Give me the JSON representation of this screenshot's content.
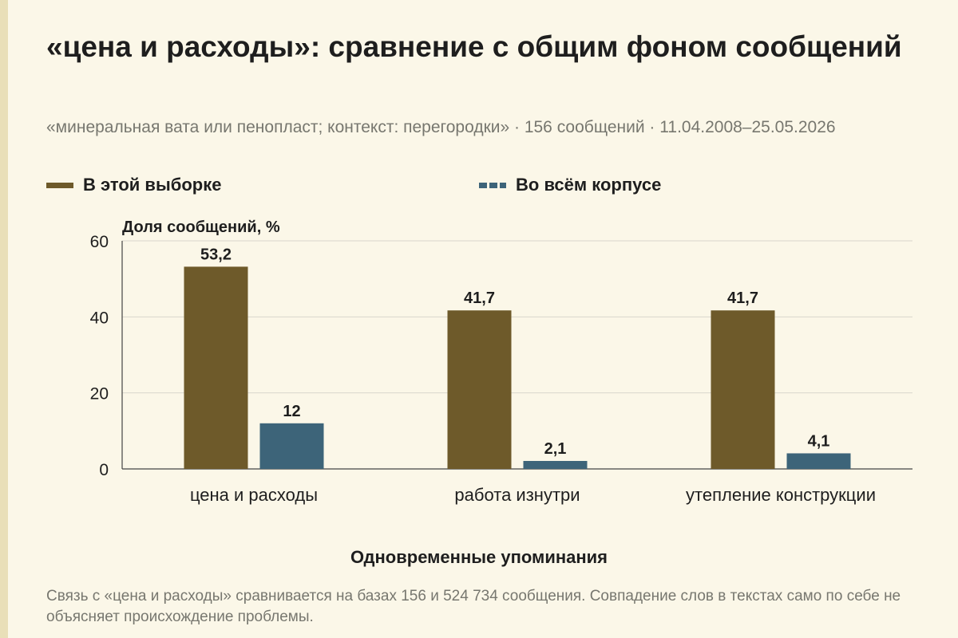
{
  "title": "«цена и расходы»: сравнение с общим фоном сообщений",
  "subtitle": "«минеральная вата или пенопласт; контекст: перегородки» · 156 сообщений · 11.04.2008–25.05.2026",
  "footnote": "Связь с «цена и расходы» сравнивается на базах 156 и 524 734 сообщения. Совпадение слов в текстах само по себе не объясняет происхождение проблемы.",
  "colors": {
    "sample": "#6e5a2a",
    "corpus": "#3d6479",
    "grid": "#d9d6cc",
    "axis": "#444444"
  },
  "chart_data": {
    "type": "bar",
    "categories": [
      "цена и расходы",
      "работа изнутри",
      "утепление конструкции"
    ],
    "series": [
      {
        "name": "В этой выборке",
        "values": [
          53.2,
          41.7,
          41.7
        ],
        "labels": [
          "53,2",
          "41,7",
          "41,7"
        ]
      },
      {
        "name": "Во всём корпусе",
        "values": [
          12,
          2.1,
          4.1
        ],
        "labels": [
          "12",
          "2,1",
          "4,1"
        ]
      }
    ],
    "ylabel": "Доля сообщений, %",
    "xlabel": "Одновременные упоминания",
    "ylim": [
      0,
      60
    ],
    "yticks": [
      0,
      20,
      40,
      60
    ],
    "grid": true,
    "legend_position": "top-left"
  }
}
